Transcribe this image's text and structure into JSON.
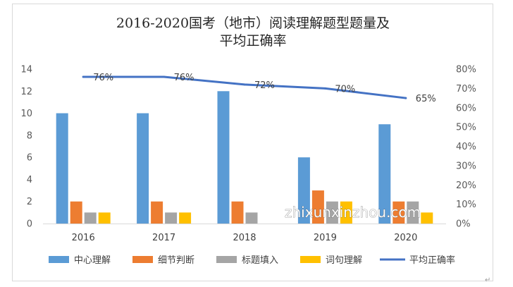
{
  "chart_data": {
    "type": "bar",
    "title_lines": [
      "2016-2020国考（地市）阅读理解题型题量及",
      "平均正确率"
    ],
    "categories": [
      "2016",
      "2017",
      "2018",
      "2019",
      "2020"
    ],
    "series": [
      {
        "name": "中心理解",
        "values": [
          10,
          10,
          12,
          6,
          9
        ],
        "color": "#5b9bd5"
      },
      {
        "name": "细节判断",
        "values": [
          2,
          2,
          2,
          3,
          2
        ],
        "color": "#ed7d31"
      },
      {
        "name": "标题填入",
        "values": [
          1,
          1,
          1,
          2,
          2
        ],
        "color": "#a5a5a5"
      },
      {
        "name": "词句理解",
        "values": [
          1,
          1,
          0,
          2,
          1
        ],
        "color": "#ffc000"
      }
    ],
    "line_series": {
      "name": "平均正确率",
      "values": [
        76,
        76,
        72,
        70,
        65
      ],
      "labels": [
        "76%",
        "76%",
        "72%",
        "70%",
        "65%"
      ],
      "color": "#4472c4",
      "axis": "right"
    },
    "y_left": {
      "min": 0,
      "max": 14,
      "ticks": [
        "0",
        "2",
        "4",
        "6",
        "8",
        "10",
        "12",
        "14"
      ]
    },
    "y_right": {
      "min": 0,
      "max": 80,
      "ticks": [
        "0%",
        "10%",
        "20%",
        "30%",
        "40%",
        "50%",
        "60%",
        "70%",
        "80%"
      ]
    },
    "grid": false,
    "legend_position": "bottom"
  },
  "watermark": "zhixunxinzhou.com",
  "corner_mark": "↵"
}
